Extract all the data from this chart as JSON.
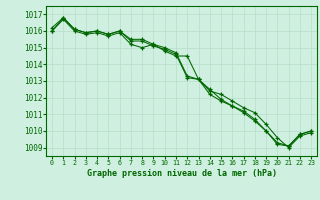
{
  "title": "Graphe pression niveau de la mer (hPa)",
  "background_color": "#cff0e0",
  "grid_color": "#b8ddc8",
  "line_color": "#006600",
  "xlim": [
    -0.5,
    23.5
  ],
  "ylim": [
    1008.5,
    1017.5
  ],
  "yticks": [
    1009,
    1010,
    1011,
    1012,
    1013,
    1014,
    1015,
    1016,
    1017
  ],
  "xticks": [
    0,
    1,
    2,
    3,
    4,
    5,
    6,
    7,
    8,
    9,
    10,
    11,
    12,
    13,
    14,
    15,
    16,
    17,
    18,
    19,
    20,
    21,
    22,
    23
  ],
  "series1": [
    1016.0,
    1016.8,
    1016.1,
    1015.9,
    1016.0,
    1015.8,
    1016.0,
    1015.4,
    1015.4,
    1015.1,
    1014.9,
    1014.6,
    1013.2,
    1013.1,
    1012.2,
    1011.8,
    1011.5,
    1011.1,
    1010.6,
    1010.0,
    1009.2,
    1009.1,
    1009.8,
    1010.0
  ],
  "series2": [
    1016.2,
    1016.8,
    1016.1,
    1015.9,
    1016.0,
    1015.8,
    1016.0,
    1015.5,
    1015.5,
    1015.2,
    1015.0,
    1014.7,
    1013.3,
    1013.1,
    1012.5,
    1011.9,
    1011.5,
    1011.2,
    1010.7,
    1010.0,
    1009.3,
    1009.1,
    1009.8,
    1010.0
  ],
  "series3": [
    1016.0,
    1016.7,
    1016.0,
    1015.8,
    1015.9,
    1015.7,
    1015.9,
    1015.2,
    1015.0,
    1015.2,
    1014.8,
    1014.5,
    1014.5,
    1013.1,
    1012.4,
    1012.2,
    1011.8,
    1011.4,
    1011.1,
    1010.4,
    1009.6,
    1009.0,
    1009.7,
    1009.9
  ]
}
